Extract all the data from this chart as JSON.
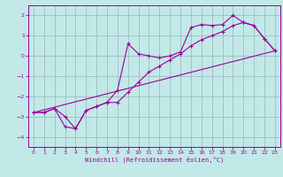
{
  "xlabel": "Windchill (Refroidissement éolien,°C)",
  "xlim": [
    -0.5,
    23.5
  ],
  "ylim": [
    -4.5,
    2.5
  ],
  "xticks": [
    0,
    1,
    2,
    3,
    4,
    5,
    6,
    7,
    8,
    9,
    10,
    11,
    12,
    13,
    14,
    15,
    16,
    17,
    18,
    19,
    20,
    21,
    22,
    23
  ],
  "yticks": [
    -4,
    -3,
    -2,
    -1,
    0,
    1,
    2
  ],
  "bg_color": "#c3e8e8",
  "line_color": "#990099",
  "grid_color": "#9bbfbf",
  "line1_x": [
    0,
    1,
    2,
    3,
    4,
    5,
    6,
    7,
    8,
    9,
    10,
    11,
    12,
    13,
    14,
    15,
    16,
    17,
    18,
    19,
    20,
    21,
    22,
    23
  ],
  "line1_y": [
    -2.8,
    -2.8,
    -2.6,
    -3.5,
    -3.6,
    -2.7,
    -2.5,
    -2.3,
    -1.7,
    0.6,
    0.1,
    0.0,
    -0.1,
    0.0,
    0.2,
    1.4,
    1.55,
    1.5,
    1.55,
    2.0,
    1.65,
    1.5,
    0.85,
    0.25
  ],
  "line2_x": [
    0,
    1,
    2,
    3,
    4,
    5,
    6,
    7,
    8,
    9,
    10,
    11,
    12,
    13,
    14,
    15,
    16,
    17,
    18,
    19,
    20,
    21,
    22,
    23
  ],
  "line2_y": [
    -2.8,
    -2.8,
    -2.6,
    -3.0,
    -3.6,
    -2.7,
    -2.5,
    -2.3,
    -2.3,
    -1.8,
    -1.3,
    -0.8,
    -0.5,
    -0.2,
    0.1,
    0.5,
    0.8,
    1.0,
    1.2,
    1.5,
    1.65,
    1.5,
    0.85,
    0.25
  ],
  "line3_x": [
    0,
    23
  ],
  "line3_y": [
    -2.8,
    0.25
  ]
}
